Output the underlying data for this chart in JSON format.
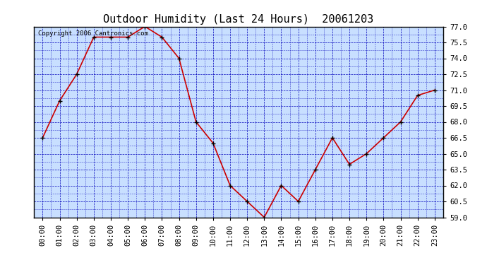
{
  "title": "Outdoor Humidity (Last 24 Hours)  20061203",
  "copyright_text": "Copyright 2006 Cantronics.com",
  "x_labels": [
    "00:00",
    "01:00",
    "02:00",
    "03:00",
    "04:00",
    "05:00",
    "06:00",
    "07:00",
    "08:00",
    "09:00",
    "10:00",
    "11:00",
    "12:00",
    "13:00",
    "14:00",
    "15:00",
    "16:00",
    "17:00",
    "18:00",
    "19:00",
    "20:00",
    "21:00",
    "22:00",
    "23:00"
  ],
  "y_values": [
    66.5,
    70.0,
    72.5,
    76.0,
    76.0,
    76.0,
    77.0,
    76.0,
    74.0,
    68.0,
    66.0,
    62.0,
    60.5,
    59.0,
    62.0,
    60.5,
    63.5,
    66.5,
    64.0,
    65.0,
    66.5,
    68.0,
    70.5,
    71.0
  ],
  "line_color": "#cc0000",
  "marker_color": "#cc0000",
  "marker_edge_color": "#000000",
  "grid_color": "#0000bb",
  "plot_bg_color": "#c8dfff",
  "outer_bg_color": "#ffffff",
  "ylim_min": 59.0,
  "ylim_max": 77.0,
  "ytick_values": [
    59.0,
    60.5,
    62.0,
    63.5,
    65.0,
    66.5,
    68.0,
    69.5,
    71.0,
    72.5,
    74.0,
    75.5,
    77.0
  ],
  "title_fontsize": 11,
  "tick_fontsize": 7.5,
  "copyright_fontsize": 6.5
}
